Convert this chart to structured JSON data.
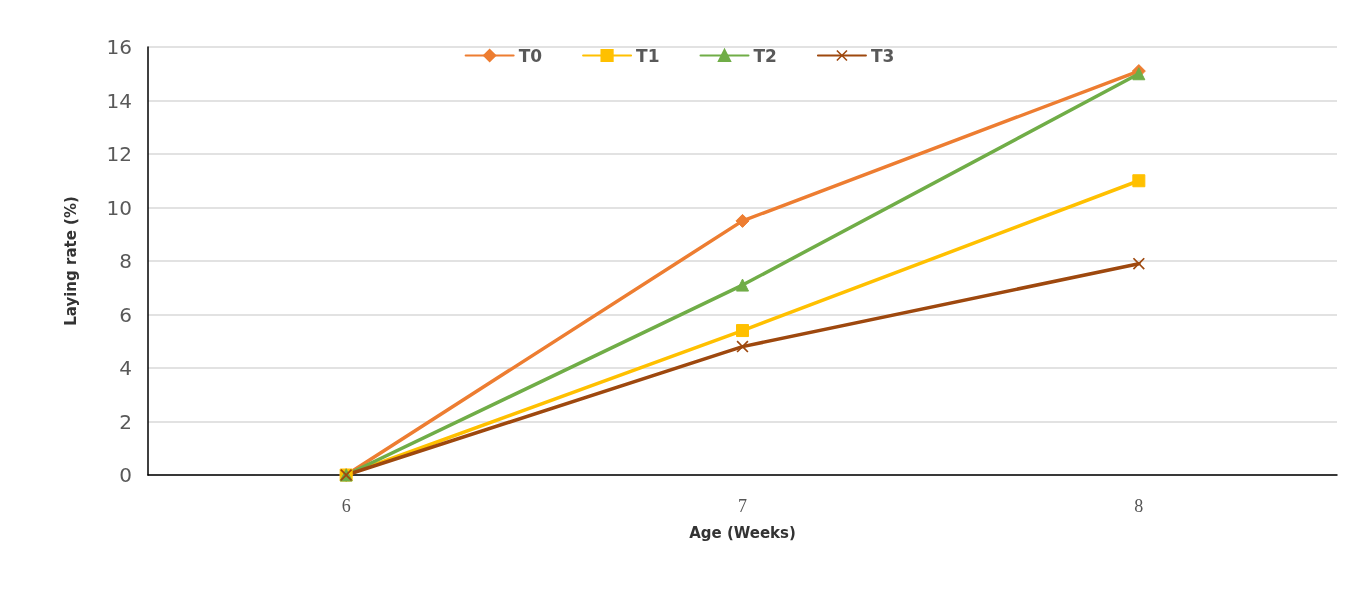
{
  "chart_data": {
    "type": "line",
    "xlabel": "Age (Weeks)",
    "ylabel": "Laying rate (%)",
    "categories": [
      "6",
      "7",
      "8"
    ],
    "series": [
      {
        "name": "T0",
        "color": "#ed7d31",
        "marker": "diamond",
        "values": [
          0,
          9.5,
          15.1
        ]
      },
      {
        "name": "T1",
        "color": "#ffc000",
        "marker": "square",
        "values": [
          0,
          5.4,
          11.0
        ]
      },
      {
        "name": "T2",
        "color": "#70ad47",
        "marker": "triangle",
        "values": [
          0,
          7.1,
          15.0
        ]
      },
      {
        "name": "T3",
        "color": "#9e480e",
        "marker": "cross",
        "values": [
          0,
          4.8,
          7.9
        ]
      }
    ],
    "ylim": [
      0,
      16
    ],
    "yticks": [
      0,
      2,
      4,
      6,
      8,
      10,
      12,
      14,
      16
    ],
    "grid": "y",
    "legend": "top",
    "line_style": "solid"
  }
}
